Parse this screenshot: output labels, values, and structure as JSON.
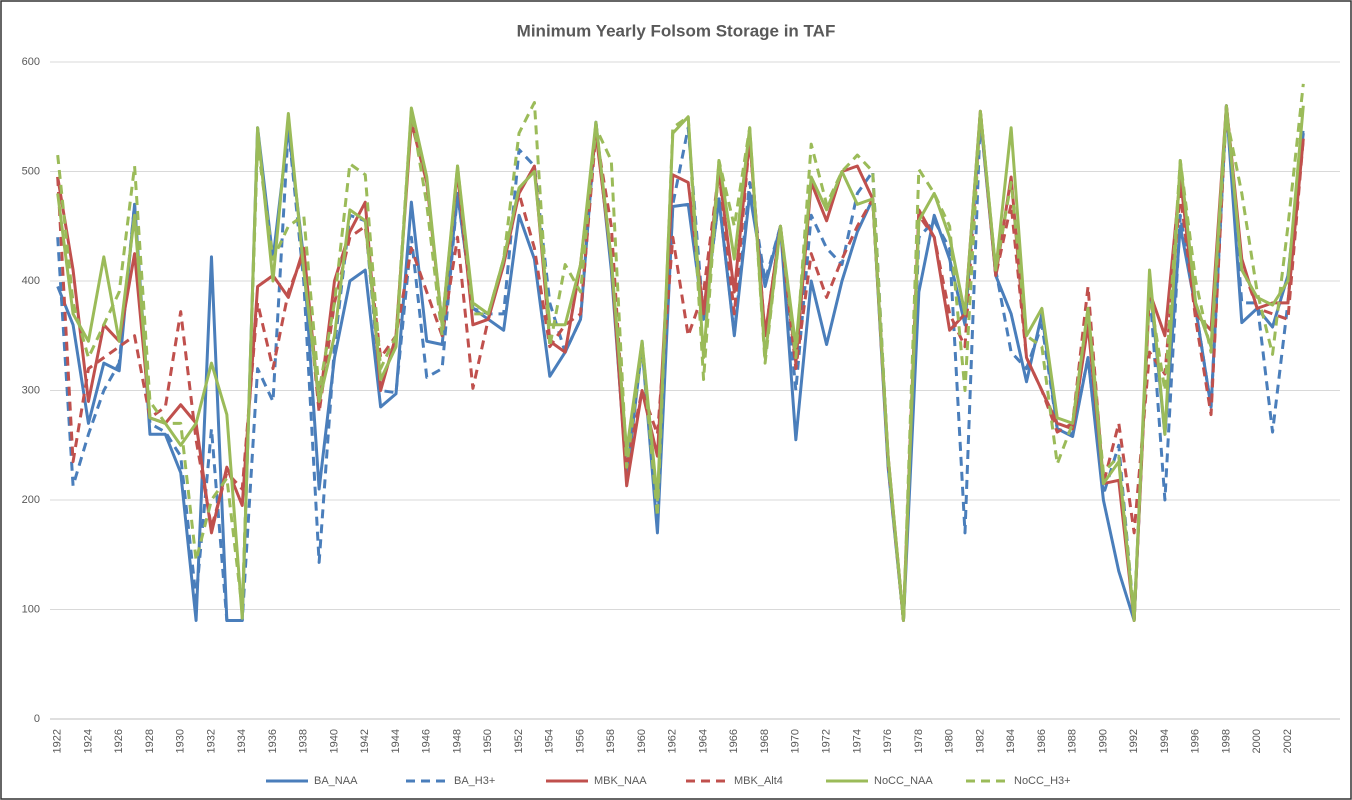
{
  "chart_data": {
    "type": "line",
    "title": "Minimum Yearly Folsom Storage in TAF",
    "categories": [
      "1922",
      null,
      "1924",
      null,
      "1926",
      null,
      "1928",
      null,
      "1930",
      null,
      "1932",
      null,
      "1934",
      null,
      "1936",
      null,
      "1938",
      null,
      "1940",
      null,
      "1942",
      null,
      "1944",
      null,
      "1946",
      null,
      "1948",
      null,
      "1950",
      null,
      "1952",
      null,
      "1954",
      null,
      "1956",
      null,
      "1958",
      null,
      "1960",
      null,
      "1962",
      null,
      "1964",
      null,
      "1966",
      null,
      "1968",
      null,
      "1970",
      null,
      "1972",
      null,
      "1974",
      null,
      "1976",
      null,
      "1978",
      null,
      "1980",
      null,
      "1982",
      null,
      "1984",
      null,
      "1986",
      null,
      "1988",
      null,
      "1990",
      null,
      "1992",
      null,
      "1994",
      null,
      "1996",
      null,
      "1998",
      null,
      "2000",
      null,
      "2002",
      null
    ],
    "ylim": [
      0,
      600
    ],
    "yticks": [
      0,
      100,
      200,
      300,
      400,
      500,
      600
    ],
    "grid": true,
    "legend": "bottom",
    "series": [
      {
        "name": "BA_NAA",
        "color": "#4a7ebb",
        "dashed": false,
        "values": [
          395,
          360,
          270,
          325,
          318,
          470,
          260,
          260,
          225,
          90,
          422,
          90,
          90,
          540,
          420,
          540,
          420,
          210,
          330,
          400,
          410,
          285,
          297,
          472,
          345,
          342,
          480,
          375,
          365,
          355,
          460,
          420,
          313,
          335,
          365,
          545,
          410,
          220,
          340,
          170,
          468,
          470,
          365,
          475,
          350,
          480,
          395,
          450,
          255,
          400,
          342,
          400,
          445,
          475,
          230,
          90,
          390,
          460,
          420,
          360,
          550,
          405,
          370,
          308,
          370,
          265,
          258,
          330,
          200,
          135,
          90,
          400,
          260,
          450,
          375,
          285,
          560,
          362,
          375,
          358,
          405,
          535
        ]
      },
      {
        "name": "BA_H3+",
        "color": "#4a7ebb",
        "dashed": true,
        "values": [
          440,
          213,
          260,
          300,
          325,
          470,
          270,
          262,
          240,
          110,
          265,
          90,
          90,
          320,
          290,
          540,
          400,
          143,
          340,
          460,
          455,
          300,
          298,
          440,
          312,
          320,
          480,
          375,
          370,
          370,
          520,
          505,
          380,
          335,
          365,
          545,
          415,
          220,
          345,
          190,
          470,
          540,
          365,
          475,
          352,
          490,
          400,
          450,
          300,
          460,
          430,
          415,
          480,
          500,
          235,
          90,
          440,
          455,
          430,
          170,
          550,
          410,
          335,
          320,
          360,
          265,
          260,
          330,
          205,
          250,
          90,
          395,
          200,
          460,
          375,
          285,
          560,
          380,
          380,
          262,
          380,
          540
        ]
      },
      {
        "name": "MBK_NAA",
        "color": "#c0504d",
        "dashed": false,
        "values": [
          495,
          410,
          290,
          360,
          345,
          425,
          275,
          270,
          287,
          270,
          170,
          230,
          195,
          395,
          405,
          385,
          430,
          285,
          400,
          445,
          472,
          300,
          350,
          545,
          490,
          360,
          500,
          360,
          365,
          415,
          480,
          505,
          345,
          335,
          415,
          535,
          420,
          213,
          300,
          240,
          497,
          490,
          370,
          500,
          390,
          530,
          350,
          450,
          325,
          490,
          455,
          500,
          505,
          475,
          240,
          90,
          465,
          440,
          355,
          370,
          555,
          405,
          495,
          330,
          300,
          270,
          265,
          360,
          215,
          218,
          90,
          390,
          350,
          495,
          370,
          355,
          560,
          420,
          375,
          380,
          380,
          530
        ]
      },
      {
        "name": "MBK_Alt4",
        "color": "#c0504d",
        "dashed": true,
        "values": [
          495,
          235,
          320,
          330,
          340,
          350,
          275,
          285,
          372,
          255,
          175,
          225,
          210,
          380,
          320,
          390,
          425,
          280,
          380,
          440,
          450,
          330,
          350,
          430,
          390,
          350,
          440,
          302,
          365,
          420,
          480,
          430,
          340,
          360,
          370,
          535,
          450,
          230,
          300,
          260,
          440,
          350,
          390,
          500,
          370,
          530,
          350,
          450,
          320,
          425,
          385,
          420,
          450,
          475,
          235,
          90,
          460,
          440,
          370,
          340,
          555,
          405,
          470,
          330,
          300,
          262,
          270,
          395,
          215,
          270,
          170,
          335,
          315,
          480,
          365,
          278,
          560,
          415,
          375,
          370,
          365,
          530
        ]
      },
      {
        "name": "NoCC_NAA",
        "color": "#9bbb59",
        "dashed": false,
        "values": [
          480,
          370,
          345,
          422,
          345,
          460,
          275,
          270,
          250,
          270,
          325,
          278,
          92,
          540,
          400,
          553,
          410,
          290,
          350,
          465,
          455,
          310,
          340,
          558,
          495,
          360,
          505,
          380,
          370,
          420,
          485,
          500,
          360,
          360,
          415,
          545,
          420,
          245,
          345,
          200,
          535,
          550,
          330,
          510,
          420,
          540,
          330,
          450,
          340,
          495,
          465,
          500,
          470,
          475,
          240,
          90,
          455,
          480,
          440,
          370,
          555,
          410,
          540,
          350,
          375,
          275,
          270,
          375,
          215,
          235,
          90,
          410,
          260,
          510,
          380,
          340,
          560,
          410,
          385,
          378,
          400,
          560
        ]
      },
      {
        "name": "NoCC_H3+",
        "color": "#9bbb59",
        "dashed": true,
        "values": [
          515,
          380,
          330,
          360,
          390,
          505,
          290,
          270,
          270,
          145,
          200,
          220,
          100,
          525,
          420,
          450,
          460,
          300,
          380,
          507,
          497,
          320,
          350,
          555,
          470,
          350,
          505,
          370,
          370,
          420,
          535,
          563,
          340,
          415,
          390,
          540,
          510,
          230,
          340,
          185,
          540,
          550,
          310,
          510,
          450,
          540,
          325,
          450,
          330,
          525,
          470,
          500,
          515,
          500,
          235,
          90,
          502,
          480,
          450,
          300,
          555,
          410,
          490,
          350,
          340,
          233,
          270,
          375,
          225,
          240,
          95,
          390,
          300,
          510,
          400,
          335,
          550,
          480,
          390,
          333,
          450,
          580
        ]
      }
    ]
  }
}
